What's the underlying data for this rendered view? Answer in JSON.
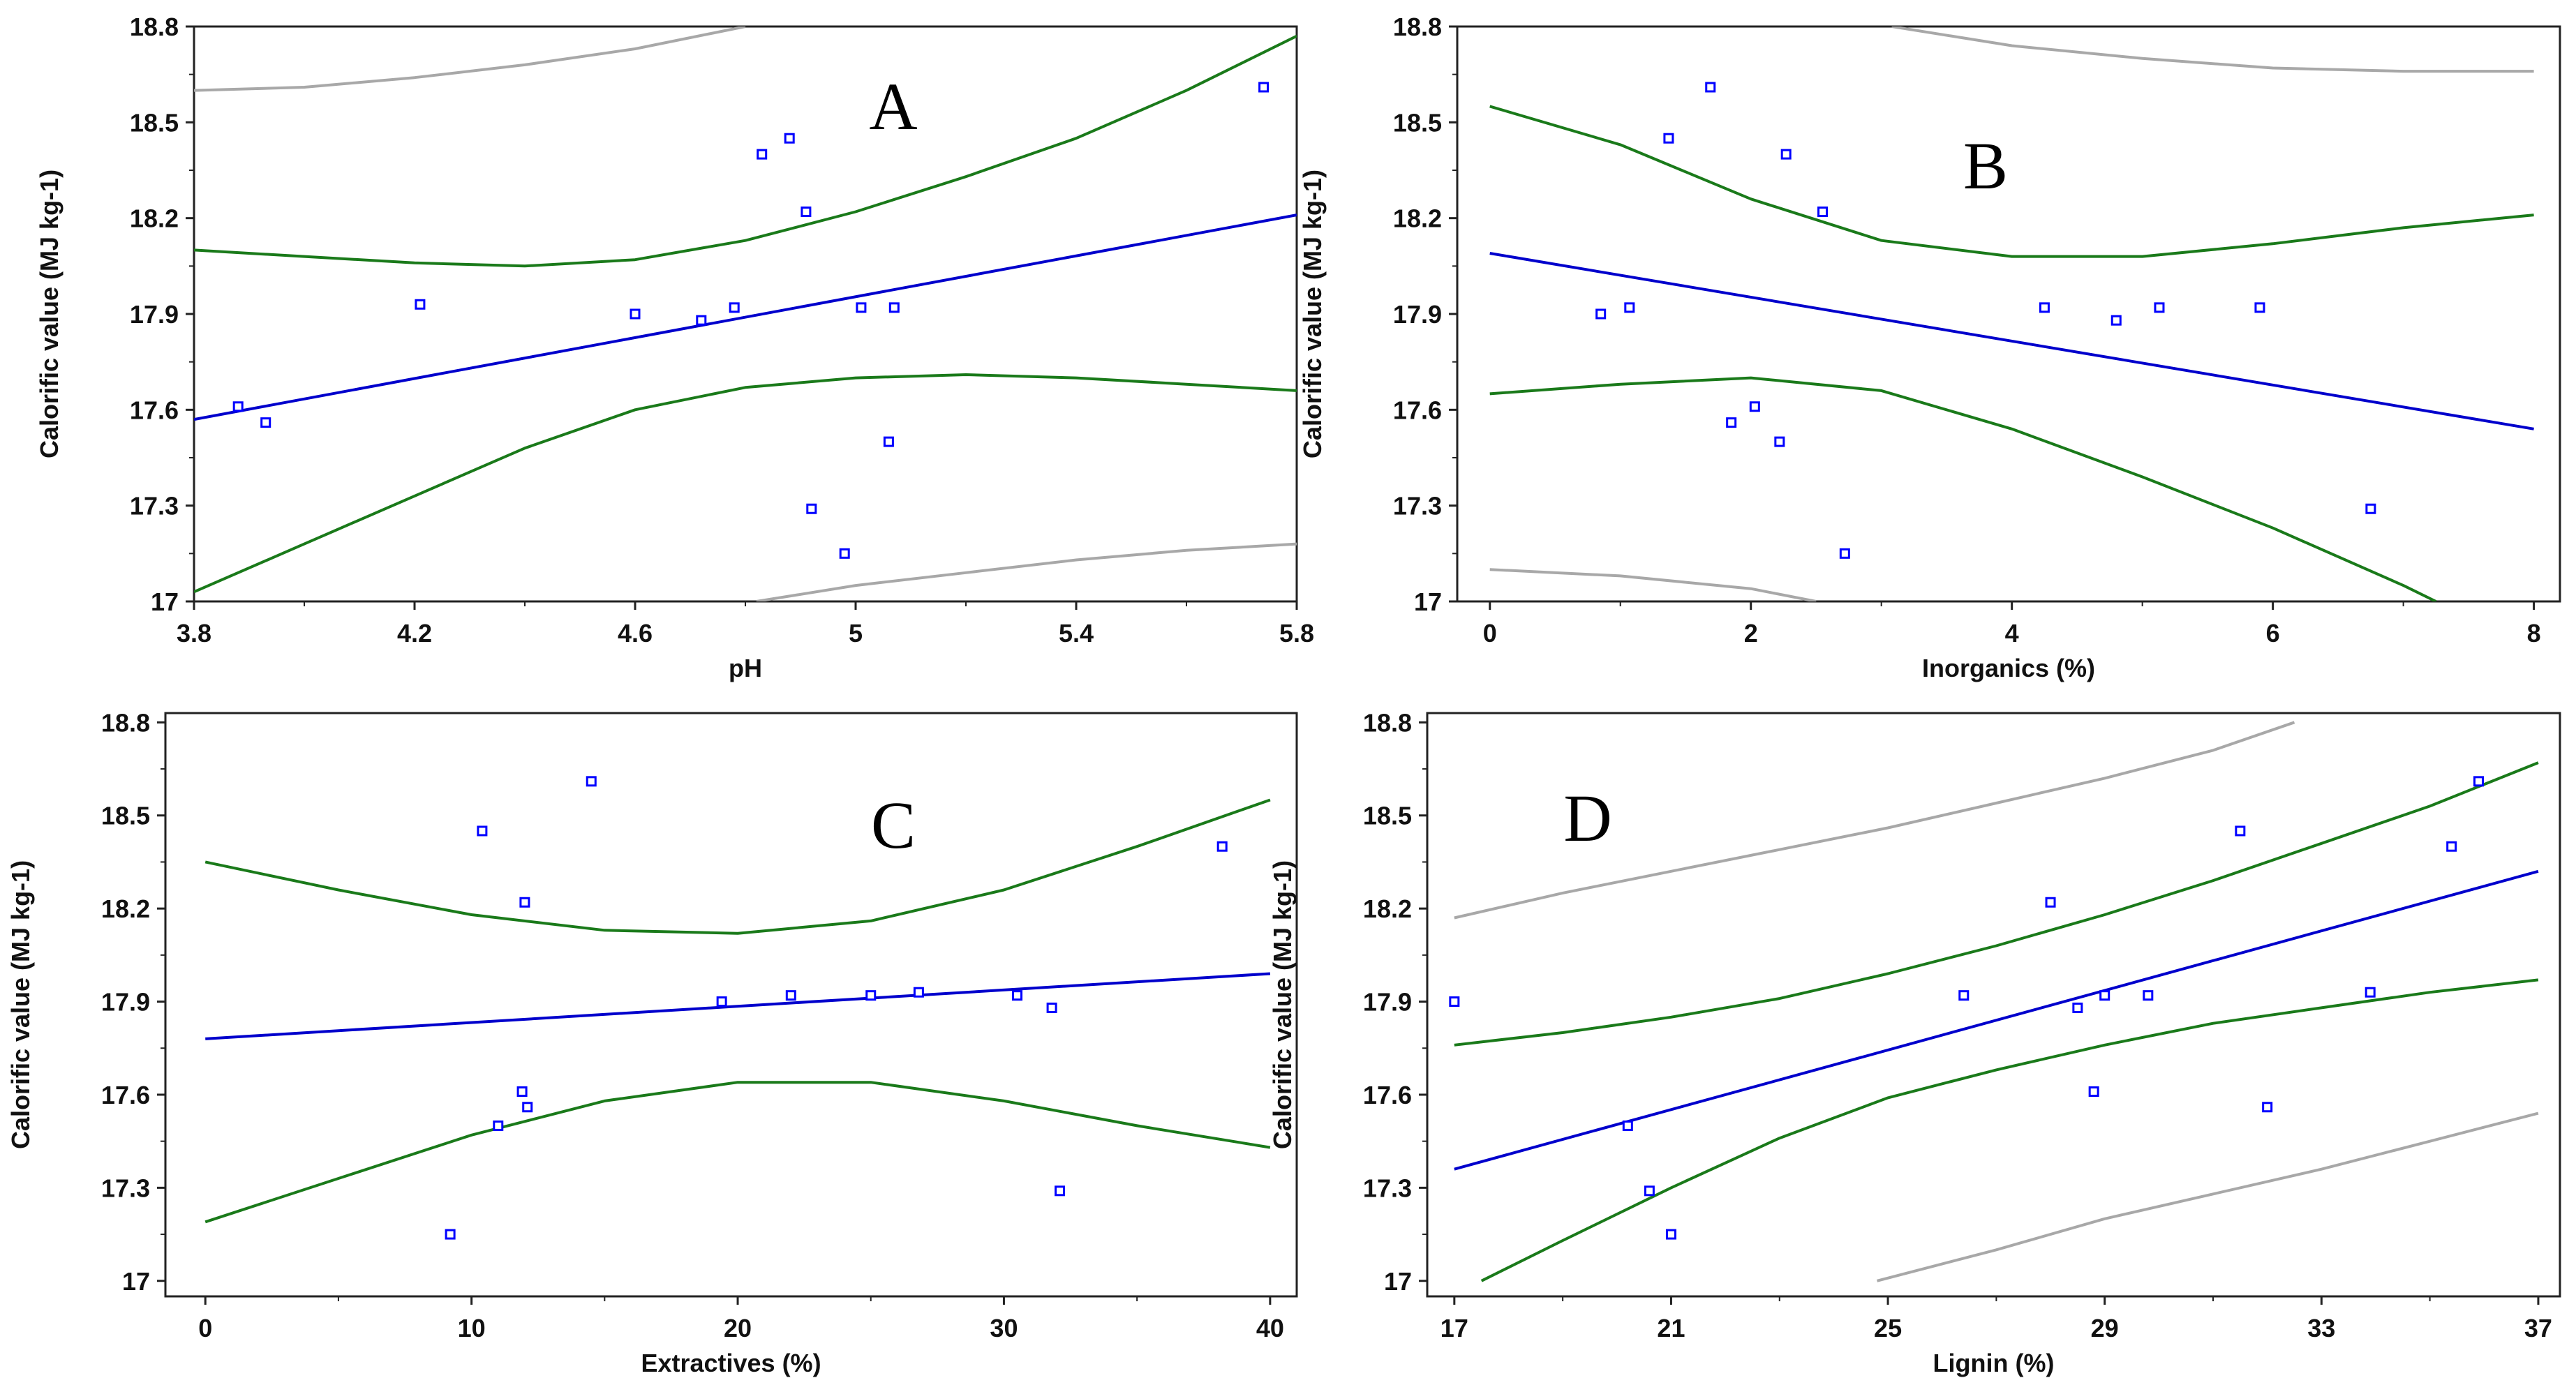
{
  "colors": {
    "fit": "#0000cc",
    "confidence": "#1a7a1a",
    "prediction": "#a8a8a8",
    "point": "#0000ff",
    "frame": "#222222"
  },
  "chart_data": [
    {
      "type": "scatter",
      "panel_label": "A",
      "xlabel": "pH",
      "ylabel": "Calorific value (MJ kg-1)",
      "xlim": [
        3.8,
        5.8
      ],
      "ylim": [
        17.0,
        18.8
      ],
      "xticks": [
        "3.8",
        "4.2",
        "4.6",
        "5",
        "5.4",
        "5.8"
      ],
      "yticks": [
        "17",
        "17.3",
        "17.6",
        "17.9",
        "18.2",
        "18.5",
        "18.8"
      ],
      "points": [
        [
          3.88,
          17.61
        ],
        [
          3.93,
          17.56
        ],
        [
          4.21,
          17.93
        ],
        [
          4.6,
          17.9
        ],
        [
          4.72,
          17.88
        ],
        [
          4.78,
          17.92
        ],
        [
          4.83,
          18.4
        ],
        [
          4.88,
          18.45
        ],
        [
          4.91,
          18.22
        ],
        [
          4.92,
          17.29
        ],
        [
          4.98,
          17.15
        ],
        [
          5.01,
          17.92
        ],
        [
          5.06,
          17.5
        ],
        [
          5.07,
          17.92
        ],
        [
          5.74,
          18.61
        ]
      ],
      "fit_line": [
        [
          3.8,
          17.57
        ],
        [
          5.8,
          18.21
        ]
      ],
      "confidence_upper": [
        [
          3.8,
          18.1
        ],
        [
          4.0,
          18.08
        ],
        [
          4.2,
          18.06
        ],
        [
          4.4,
          18.05
        ],
        [
          4.6,
          18.07
        ],
        [
          4.8,
          18.13
        ],
        [
          5.0,
          18.22
        ],
        [
          5.2,
          18.33
        ],
        [
          5.4,
          18.45
        ],
        [
          5.6,
          18.6
        ],
        [
          5.8,
          18.77
        ]
      ],
      "confidence_lower": [
        [
          3.8,
          17.03
        ],
        [
          4.0,
          17.18
        ],
        [
          4.2,
          17.33
        ],
        [
          4.4,
          17.48
        ],
        [
          4.6,
          17.6
        ],
        [
          4.8,
          17.67
        ],
        [
          5.0,
          17.7
        ],
        [
          5.2,
          17.71
        ],
        [
          5.4,
          17.7
        ],
        [
          5.6,
          17.68
        ],
        [
          5.8,
          17.66
        ]
      ],
      "prediction_upper": [
        [
          3.8,
          18.6
        ],
        [
          4.0,
          18.61
        ],
        [
          4.2,
          18.64
        ],
        [
          4.4,
          18.68
        ],
        [
          4.6,
          18.73
        ],
        [
          4.8,
          18.8
        ]
      ],
      "prediction_lower": [
        [
          4.82,
          17.0
        ],
        [
          5.0,
          17.05
        ],
        [
          5.2,
          17.09
        ],
        [
          5.4,
          17.13
        ],
        [
          5.6,
          17.16
        ],
        [
          5.8,
          17.18
        ]
      ]
    },
    {
      "type": "scatter",
      "panel_label": "B",
      "xlabel": "Inorganics (%)",
      "ylabel": "Calorific value (MJ kg-1)",
      "xlim": [
        -0.25,
        8.2
      ],
      "ylim": [
        17.0,
        18.8
      ],
      "xticks": [
        "0",
        "2",
        "4",
        "6",
        "8"
      ],
      "yticks": [
        "17",
        "17.3",
        "17.6",
        "17.9",
        "18.2",
        "18.5",
        "18.8"
      ],
      "points": [
        [
          0.85,
          17.9
        ],
        [
          1.07,
          17.92
        ],
        [
          1.37,
          18.45
        ],
        [
          1.69,
          18.61
        ],
        [
          1.85,
          17.56
        ],
        [
          2.03,
          17.61
        ],
        [
          2.22,
          17.5
        ],
        [
          2.27,
          18.4
        ],
        [
          2.55,
          18.22
        ],
        [
          2.72,
          17.15
        ],
        [
          4.25,
          17.92
        ],
        [
          4.8,
          17.88
        ],
        [
          5.13,
          17.92
        ],
        [
          5.9,
          17.92
        ],
        [
          6.75,
          17.29
        ]
      ],
      "fit_line": [
        [
          0,
          18.09
        ],
        [
          8,
          17.54
        ]
      ],
      "confidence_upper": [
        [
          0,
          18.55
        ],
        [
          1,
          18.43
        ],
        [
          2,
          18.26
        ],
        [
          3,
          18.13
        ],
        [
          4,
          18.08
        ],
        [
          5,
          18.08
        ],
        [
          6,
          18.12
        ],
        [
          7,
          18.17
        ],
        [
          8,
          18.21
        ]
      ],
      "confidence_lower": [
        [
          0,
          17.65
        ],
        [
          1,
          17.68
        ],
        [
          2,
          17.7
        ],
        [
          3,
          17.66
        ],
        [
          4,
          17.54
        ],
        [
          5,
          17.39
        ],
        [
          6,
          17.23
        ],
        [
          7,
          17.05
        ],
        [
          7.25,
          17.0
        ]
      ],
      "prediction_upper": [
        [
          3.08,
          18.8
        ],
        [
          4,
          18.74
        ],
        [
          5,
          18.7
        ],
        [
          6,
          18.67
        ],
        [
          7,
          18.66
        ],
        [
          8,
          18.66
        ]
      ],
      "prediction_lower": [
        [
          0,
          17.1
        ],
        [
          1,
          17.08
        ],
        [
          2,
          17.04
        ],
        [
          2.5,
          17.0
        ]
      ]
    },
    {
      "type": "scatter",
      "panel_label": "C",
      "xlabel": "Extractives (%)",
      "ylabel": "Calorific value (MJ kg-1)",
      "xlim": [
        -1.5,
        41
      ],
      "ylim": [
        16.95,
        18.83
      ],
      "xticks": [
        "0",
        "10",
        "20",
        "30",
        "40"
      ],
      "yticks": [
        "17",
        "17.3",
        "17.6",
        "17.9",
        "18.2",
        "18.5",
        "18.8"
      ],
      "points": [
        [
          9.2,
          17.15
        ],
        [
          10.4,
          18.45
        ],
        [
          11.0,
          17.5
        ],
        [
          11.9,
          17.61
        ],
        [
          12.0,
          18.22
        ],
        [
          12.1,
          17.56
        ],
        [
          14.5,
          18.61
        ],
        [
          19.4,
          17.9
        ],
        [
          22.0,
          17.92
        ],
        [
          25.0,
          17.92
        ],
        [
          26.8,
          17.93
        ],
        [
          30.5,
          17.92
        ],
        [
          31.8,
          17.88
        ],
        [
          32.1,
          17.29
        ],
        [
          38.2,
          18.4
        ]
      ],
      "fit_line": [
        [
          0,
          17.78
        ],
        [
          40,
          17.99
        ]
      ],
      "confidence_upper": [
        [
          0,
          18.35
        ],
        [
          5,
          18.26
        ],
        [
          10,
          18.18
        ],
        [
          15,
          18.13
        ],
        [
          20,
          18.12
        ],
        [
          25,
          18.16
        ],
        [
          30,
          18.26
        ],
        [
          35,
          18.4
        ],
        [
          40,
          18.55
        ]
      ],
      "confidence_lower": [
        [
          0,
          17.19
        ],
        [
          5,
          17.33
        ],
        [
          10,
          17.47
        ],
        [
          15,
          17.58
        ],
        [
          20,
          17.64
        ],
        [
          25,
          17.64
        ],
        [
          30,
          17.58
        ],
        [
          35,
          17.5
        ],
        [
          40,
          17.43
        ]
      ],
      "prediction_upper": [],
      "prediction_lower": []
    },
    {
      "type": "scatter",
      "panel_label": "D",
      "xlabel": "Lignin (%)",
      "ylabel": "Calorific value (MJ kg-1)",
      "xlim": [
        16.5,
        37.4
      ],
      "ylim": [
        16.95,
        18.83
      ],
      "xticks": [
        "17",
        "21",
        "25",
        "29",
        "33",
        "37"
      ],
      "yticks": [
        "17",
        "17.3",
        "17.6",
        "17.9",
        "18.2",
        "18.5",
        "18.8"
      ],
      "points": [
        [
          17.0,
          17.9
        ],
        [
          20.2,
          17.5
        ],
        [
          20.6,
          17.29
        ],
        [
          21.0,
          17.15
        ],
        [
          26.4,
          17.92
        ],
        [
          28.0,
          18.22
        ],
        [
          28.5,
          17.88
        ],
        [
          28.8,
          17.61
        ],
        [
          29.0,
          17.92
        ],
        [
          29.8,
          17.92
        ],
        [
          31.5,
          18.45
        ],
        [
          32.0,
          17.56
        ],
        [
          33.9,
          17.93
        ],
        [
          35.4,
          18.4
        ],
        [
          35.9,
          18.61
        ]
      ],
      "fit_line": [
        [
          17,
          17.36
        ],
        [
          37,
          18.32
        ]
      ],
      "confidence_upper": [
        [
          17,
          17.76
        ],
        [
          19,
          17.8
        ],
        [
          21,
          17.85
        ],
        [
          23,
          17.91
        ],
        [
          25,
          17.99
        ],
        [
          27,
          18.08
        ],
        [
          29,
          18.18
        ],
        [
          31,
          18.29
        ],
        [
          33,
          18.41
        ],
        [
          35,
          18.53
        ],
        [
          37,
          18.67
        ]
      ],
      "confidence_lower": [
        [
          17.5,
          17.0
        ],
        [
          19,
          17.13
        ],
        [
          21,
          17.3
        ],
        [
          23,
          17.46
        ],
        [
          25,
          17.59
        ],
        [
          27,
          17.68
        ],
        [
          29,
          17.76
        ],
        [
          31,
          17.83
        ],
        [
          33,
          17.88
        ],
        [
          35,
          17.93
        ],
        [
          37,
          17.97
        ]
      ],
      "prediction_upper": [
        [
          17,
          18.17
        ],
        [
          19,
          18.25
        ],
        [
          21,
          18.32
        ],
        [
          23,
          18.39
        ],
        [
          25,
          18.46
        ],
        [
          27,
          18.54
        ],
        [
          29,
          18.62
        ],
        [
          31,
          18.71
        ],
        [
          32.5,
          18.8
        ]
      ],
      "prediction_lower": [
        [
          24.8,
          17.0
        ],
        [
          27,
          17.1
        ],
        [
          29,
          17.2
        ],
        [
          31,
          17.28
        ],
        [
          33,
          17.36
        ],
        [
          35,
          17.45
        ],
        [
          37,
          17.54
        ]
      ]
    }
  ]
}
